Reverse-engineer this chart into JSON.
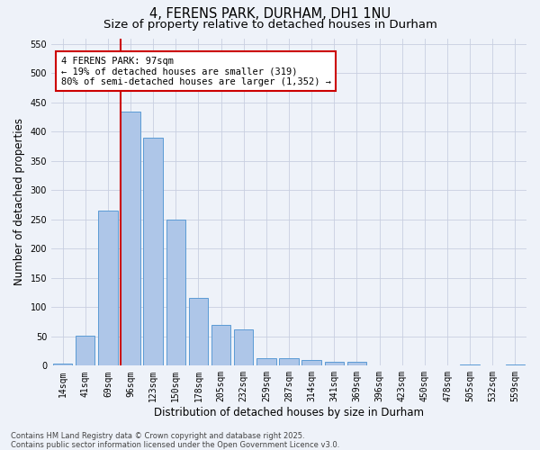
{
  "title_line1": "4, FERENS PARK, DURHAM, DH1 1NU",
  "title_line2": "Size of property relative to detached houses in Durham",
  "xlabel": "Distribution of detached houses by size in Durham",
  "ylabel": "Number of detached properties",
  "categories": [
    "14sqm",
    "41sqm",
    "69sqm",
    "96sqm",
    "123sqm",
    "150sqm",
    "178sqm",
    "205sqm",
    "232sqm",
    "259sqm",
    "287sqm",
    "314sqm",
    "341sqm",
    "369sqm",
    "396sqm",
    "423sqm",
    "450sqm",
    "478sqm",
    "505sqm",
    "532sqm",
    "559sqm"
  ],
  "values": [
    3,
    52,
    265,
    435,
    390,
    250,
    116,
    70,
    62,
    13,
    13,
    9,
    7,
    6,
    0,
    0,
    0,
    0,
    2,
    0,
    2
  ],
  "bar_color": "#aec6e8",
  "bar_edge_color": "#5b9bd5",
  "vline_color": "#cc0000",
  "vline_index": 3,
  "annotation_text": "4 FERENS PARK: 97sqm\n← 19% of detached houses are smaller (319)\n80% of semi-detached houses are larger (1,352) →",
  "annotation_box_color": "#ffffff",
  "annotation_box_edge_color": "#cc0000",
  "ylim": [
    0,
    560
  ],
  "yticks": [
    0,
    50,
    100,
    150,
    200,
    250,
    300,
    350,
    400,
    450,
    500,
    550
  ],
  "background_color": "#eef2f9",
  "grid_color": "#c8cfe0",
  "footnote": "Contains HM Land Registry data © Crown copyright and database right 2025.\nContains public sector information licensed under the Open Government Licence v3.0.",
  "title_fontsize": 10.5,
  "subtitle_fontsize": 9.5,
  "axis_label_fontsize": 8.5,
  "tick_fontsize": 7,
  "annotation_fontsize": 7.5,
  "footnote_fontsize": 6
}
